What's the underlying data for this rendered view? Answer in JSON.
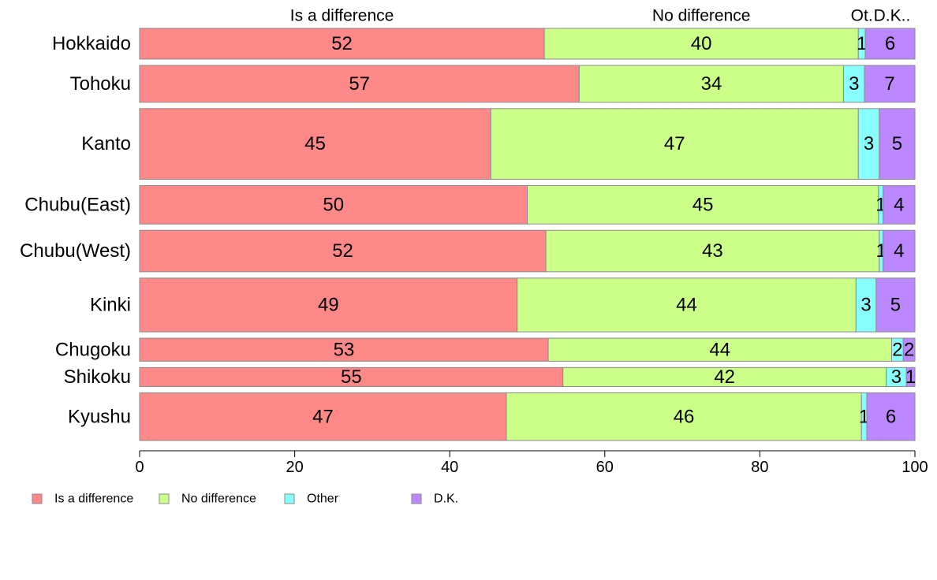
{
  "chart_data": {
    "type": "bar",
    "orientation": "horizontal",
    "stacked": true,
    "variable_width": true,
    "categories": [
      "Hokkaido",
      "Tohoku",
      "Kanto",
      "Chubu(East)",
      "Chubu(West)",
      "Kinki",
      "Chugoku",
      "Shikoku",
      "Kyushu"
    ],
    "series": [
      {
        "name": "Is a difference",
        "header": "Is a difference",
        "color": "#ff8888",
        "values": [
          52.2,
          56.7,
          45.3,
          50.0,
          52.4,
          48.7,
          52.7,
          54.6,
          47.3
        ],
        "labels": [
          "52",
          "57",
          "45",
          "50",
          "52",
          "49",
          "53",
          "55",
          "47"
        ]
      },
      {
        "name": "No difference",
        "header": "No difference",
        "color": "#ccff88",
        "values": [
          40.5,
          34.1,
          47.4,
          45.3,
          43.0,
          43.7,
          44.3,
          41.7,
          45.8
        ],
        "labels": [
          "40",
          "34",
          "47",
          "45",
          "43",
          "44",
          "44",
          "42",
          "46"
        ]
      },
      {
        "name": "Other",
        "header": "Ot.",
        "color": "#88ffff",
        "values": [
          0.9,
          2.7,
          2.7,
          0.6,
          0.5,
          2.6,
          1.5,
          2.6,
          0.7
        ],
        "labels": [
          "1",
          "3",
          "3",
          "1",
          "1",
          "3",
          "2",
          "3",
          "1"
        ]
      },
      {
        "name": "D.K.",
        "header": "D.K..",
        "color": "#bb88ff",
        "values": [
          6.4,
          6.5,
          4.6,
          4.1,
          4.1,
          5.0,
          1.5,
          1.1,
          6.2
        ],
        "labels": [
          "6",
          "7",
          "5",
          "4",
          "4",
          "5",
          "2",
          "1",
          "6"
        ]
      }
    ],
    "bar_weights": [
      1.0,
      1.2,
      2.3,
      1.25,
      1.35,
      1.75,
      0.75,
      0.62,
      1.55
    ],
    "xlim": [
      0,
      100
    ],
    "xticks": [
      0,
      20,
      40,
      60,
      80,
      100
    ],
    "title": "",
    "xlabel": "",
    "ylabel": "",
    "grid": false,
    "legend_position": "bottom-left"
  }
}
